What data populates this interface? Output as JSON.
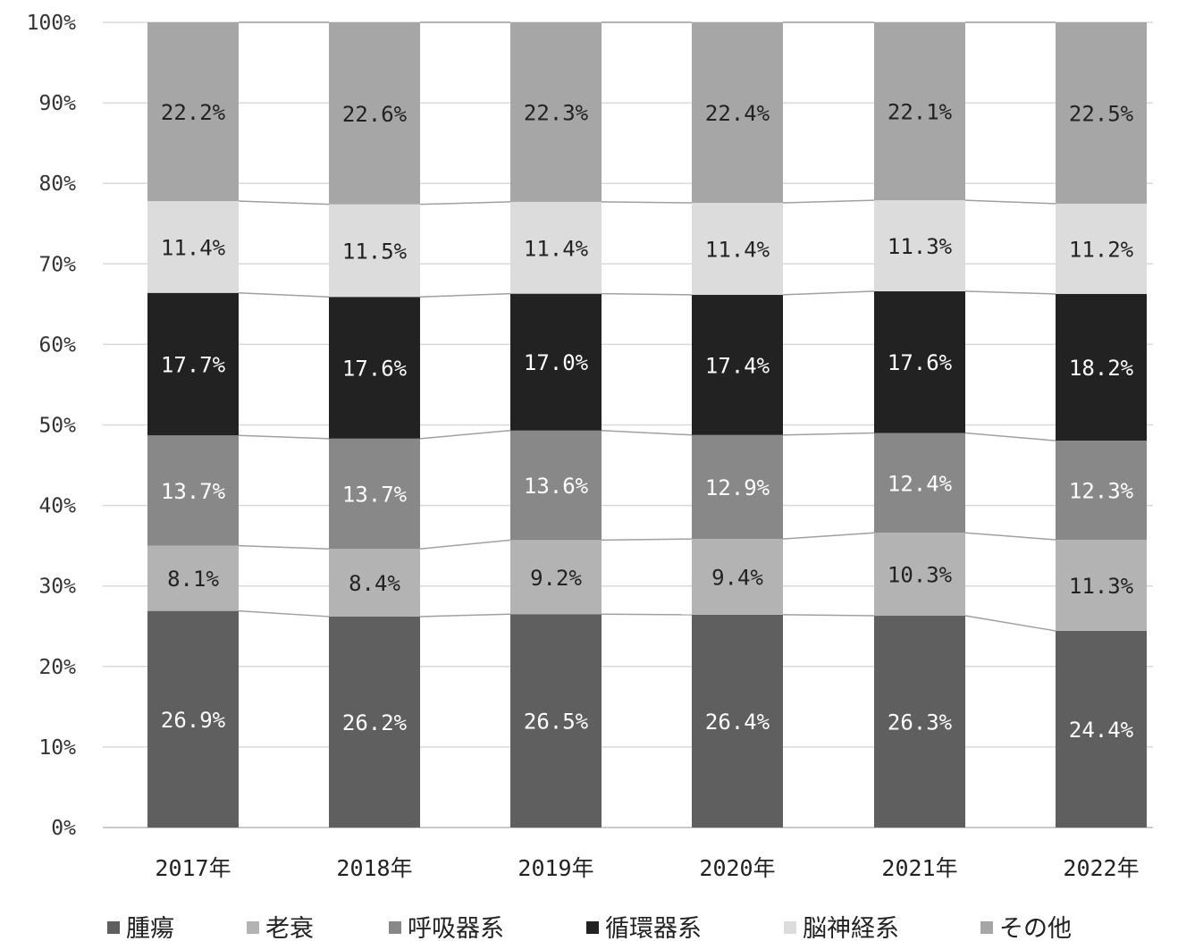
{
  "chart_data": {
    "type": "bar",
    "stacked": true,
    "percent_scale": true,
    "categories": [
      "2017年",
      "2018年",
      "2019年",
      "2020年",
      "2021年",
      "2022年"
    ],
    "series": [
      {
        "name": "腫瘍",
        "color": "#5f5f5f",
        "label_color": "#ffffff",
        "values": [
          26.9,
          26.2,
          26.5,
          26.4,
          26.3,
          24.4
        ],
        "labels": [
          "26.9%",
          "26.2%",
          "26.5%",
          "26.4%",
          "26.3%",
          "24.4%"
        ]
      },
      {
        "name": "老衰",
        "color": "#b3b3b3",
        "label_color": "#222222",
        "values": [
          8.1,
          8.4,
          9.2,
          9.4,
          10.3,
          11.3
        ],
        "labels": [
          "8.1%",
          "8.4%",
          "9.2%",
          "9.4%",
          "10.3%",
          "11.3%"
        ]
      },
      {
        "name": "呼吸器系",
        "color": "#888888",
        "label_color": "#ffffff",
        "values": [
          13.7,
          13.7,
          13.6,
          12.9,
          12.4,
          12.3
        ],
        "labels": [
          "13.7%",
          "13.7%",
          "13.6%",
          "12.9%",
          "12.4%",
          "12.3%"
        ]
      },
      {
        "name": "循環器系",
        "color": "#222222",
        "label_color": "#ffffff",
        "values": [
          17.7,
          17.6,
          17.0,
          17.4,
          17.6,
          18.2
        ],
        "labels": [
          "17.7%",
          "17.6%",
          "17.0%",
          "17.4%",
          "17.6%",
          "18.2%"
        ]
      },
      {
        "name": "脳神経系",
        "color": "#dcdcdc",
        "label_color": "#222222",
        "values": [
          11.4,
          11.5,
          11.4,
          11.4,
          11.3,
          11.2
        ],
        "labels": [
          "11.4%",
          "11.5%",
          "11.4%",
          "11.4%",
          "11.3%",
          "11.2%"
        ]
      },
      {
        "name": "その他",
        "color": "#a6a6a6",
        "label_color": "#222222",
        "values": [
          22.2,
          22.6,
          22.3,
          22.4,
          22.1,
          22.5
        ],
        "labels": [
          "22.2%",
          "22.6%",
          "22.3%",
          "22.4%",
          "22.1%",
          "22.5%"
        ]
      }
    ],
    "y_ticks": [
      "0%",
      "10%",
      "20%",
      "30%",
      "40%",
      "50%",
      "60%",
      "70%",
      "80%",
      "90%",
      "100%"
    ],
    "ylim": [
      0,
      100
    ],
    "grid": true,
    "series_lines": true,
    "legend_position": "bottom",
    "gridline_color": "#d9d9d9",
    "series_line_color": "#a0a0a0"
  }
}
